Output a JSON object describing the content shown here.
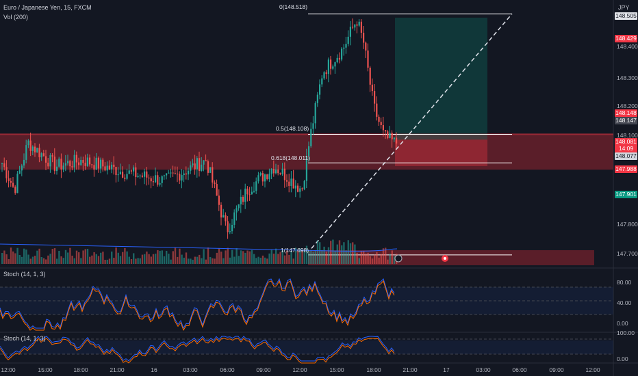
{
  "header": {
    "symbol_title": "Euro / Japanese Yen, 15, FXCM",
    "volume_label": "Vol (200)",
    "currency": "JPY"
  },
  "price_axis": {
    "labels": [
      "148.400",
      "148.300",
      "148.200",
      "148.100",
      "147.800",
      "147.700"
    ]
  },
  "price_tags": [
    {
      "text": "148.505",
      "color": "#e1e3e8",
      "textcolor": "#131722"
    },
    {
      "text": "148.429",
      "color": "#f23645",
      "textcolor": "#ffffff"
    },
    {
      "text": "148.148",
      "color": "#f23645",
      "textcolor": "#ffffff"
    },
    {
      "text": "148.147",
      "color": "#434651",
      "textcolor": "#ffffff"
    },
    {
      "text": "148.081",
      "color": "#f23645",
      "textcolor": "#ffffff"
    },
    {
      "text": "14:09",
      "color": "#f23645",
      "textcolor": "#ffffff"
    },
    {
      "text": "148.077",
      "color": "#d1d4dc",
      "textcolor": "#131722"
    },
    {
      "text": "147.988",
      "color": "#f23645",
      "textcolor": "#ffffff"
    },
    {
      "text": "147.901",
      "color": "#089981",
      "textcolor": "#ffffff"
    }
  ],
  "fib_labels": [
    "0(148.518)",
    "0.5(148.108)",
    "0.618(148.011)",
    "1(147.698)"
  ],
  "stoch": {
    "label1": "Stoch (14, 1, 3)",
    "label2": "Stoch (14, 1, 3)",
    "axis1": [
      "80.00",
      "40.00",
      "0.00"
    ],
    "axis2": [
      "100.00",
      "0.00"
    ]
  },
  "time_axis": [
    "12:00",
    "15:00",
    "18:00",
    "21:00",
    "16",
    "03:00",
    "06:00",
    "09:00",
    "12:00",
    "15:00",
    "18:00",
    "21:00",
    "17",
    "03:00",
    "06:00",
    "09:00",
    "12:00"
  ],
  "colors": {
    "up": "#26a69a",
    "down": "#ef5350",
    "background": "#131722"
  }
}
